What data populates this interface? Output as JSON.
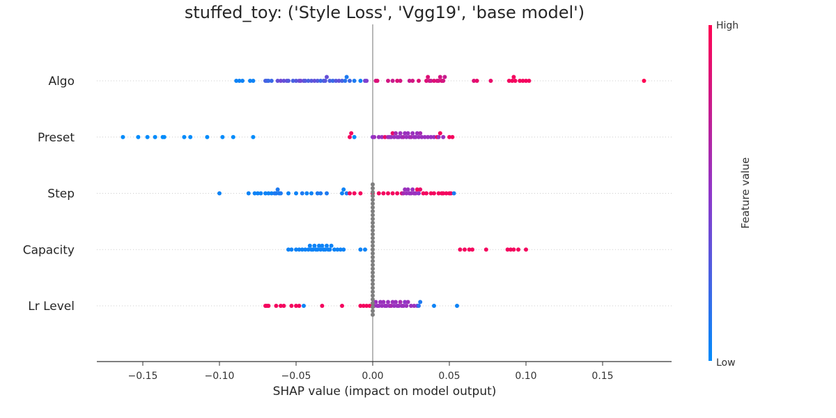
{
  "chart_data": {
    "type": "scatter",
    "subtype": "shap-beeswarm",
    "title": "stuffed_toy: ('Style Loss', 'Vgg19', 'base model')",
    "xlabel": "SHAP value (impact on model output)",
    "xlim": [
      -0.18,
      0.195
    ],
    "x_ticks": [
      -0.15,
      -0.1,
      -0.05,
      0.0,
      0.05,
      0.1,
      0.15
    ],
    "x_tick_labels": [
      "−0.15",
      "−0.10",
      "−0.05",
      "0.00",
      "0.05",
      "0.10",
      "0.15"
    ],
    "features": [
      "Algo",
      "Preset",
      "Step",
      "Capacity",
      "Lr Level"
    ],
    "colorbar": {
      "label": "Feature value",
      "high": "High",
      "low": "Low",
      "low_color": "#008bfb",
      "mid_color": "#8f36c9",
      "high_color": "#ff0052"
    },
    "missing_color": "#7f7f7f",
    "series": [
      {
        "feature": "Algo",
        "points": [
          [
            -0.089,
            0.05
          ],
          [
            -0.087,
            0.05
          ],
          [
            -0.085,
            0.05
          ],
          [
            -0.08,
            0.05
          ],
          [
            -0.078,
            0.05
          ],
          [
            -0.07,
            0.25
          ],
          [
            -0.069,
            0.25
          ],
          [
            -0.068,
            0.2
          ],
          [
            -0.066,
            0.2
          ],
          [
            -0.062,
            0.35
          ],
          [
            -0.06,
            0.4
          ],
          [
            -0.058,
            0.35
          ],
          [
            -0.056,
            0.35
          ],
          [
            -0.055,
            0.3
          ],
          [
            -0.052,
            0.25
          ],
          [
            -0.05,
            0.3
          ],
          [
            -0.048,
            0.35
          ],
          [
            -0.047,
            0.4
          ],
          [
            -0.045,
            0.35
          ],
          [
            -0.044,
            0.3
          ],
          [
            -0.042,
            0.25
          ],
          [
            -0.04,
            0.3
          ],
          [
            -0.038,
            0.35
          ],
          [
            -0.036,
            0.3
          ],
          [
            -0.034,
            0.2
          ],
          [
            -0.032,
            0.25
          ],
          [
            -0.031,
            0.3
          ],
          [
            -0.03,
            0.35
          ],
          [
            -0.028,
            0.25
          ],
          [
            -0.026,
            0.2
          ],
          [
            -0.024,
            0.3
          ],
          [
            -0.022,
            0.35
          ],
          [
            -0.02,
            0.25
          ],
          [
            -0.018,
            0.15
          ],
          [
            -0.017,
            0.1
          ],
          [
            -0.015,
            0.2
          ],
          [
            -0.012,
            0.1
          ],
          [
            -0.008,
            0.05
          ],
          [
            -0.005,
            0.4
          ],
          [
            -0.004,
            0.45
          ],
          [
            0.002,
            0.8
          ],
          [
            0.003,
            0.85
          ],
          [
            0.01,
            0.8
          ],
          [
            0.013,
            0.75
          ],
          [
            0.016,
            0.85
          ],
          [
            0.018,
            0.8
          ],
          [
            0.024,
            0.75
          ],
          [
            0.026,
            0.8
          ],
          [
            0.03,
            0.85
          ],
          [
            0.035,
            0.85
          ],
          [
            0.036,
            0.85
          ],
          [
            0.037,
            0.8
          ],
          [
            0.038,
            0.75
          ],
          [
            0.04,
            0.85
          ],
          [
            0.042,
            0.85
          ],
          [
            0.043,
            0.8
          ],
          [
            0.044,
            0.8
          ],
          [
            0.045,
            0.85
          ],
          [
            0.046,
            0.8
          ],
          [
            0.047,
            0.75
          ],
          [
            0.066,
            0.85
          ],
          [
            0.068,
            0.9
          ],
          [
            0.077,
            0.9
          ],
          [
            0.089,
            0.95
          ],
          [
            0.091,
            0.95
          ],
          [
            0.092,
            0.95
          ],
          [
            0.093,
            0.95
          ],
          [
            0.096,
            0.95
          ],
          [
            0.098,
            0.95
          ],
          [
            0.1,
            0.95
          ],
          [
            0.102,
            0.95
          ],
          [
            0.177,
            1.0
          ]
        ]
      },
      {
        "feature": "Preset",
        "points": [
          [
            -0.163,
            0.0
          ],
          [
            -0.153,
            0.0
          ],
          [
            -0.147,
            0.0
          ],
          [
            -0.142,
            0.0
          ],
          [
            -0.137,
            0.0
          ],
          [
            -0.136,
            0.0
          ],
          [
            -0.123,
            0.0
          ],
          [
            -0.119,
            0.0
          ],
          [
            -0.108,
            0.0
          ],
          [
            -0.098,
            0.0
          ],
          [
            -0.091,
            0.0
          ],
          [
            -0.078,
            0.0
          ],
          [
            -0.015,
            0.95
          ],
          [
            -0.014,
            0.95
          ],
          [
            -0.012,
            0.0
          ],
          [
            0.0,
            0.5
          ],
          [
            0.001,
            0.55
          ],
          [
            0.004,
            0.55
          ],
          [
            0.006,
            0.55
          ],
          [
            0.008,
            0.9
          ],
          [
            0.01,
            0.6
          ],
          [
            0.011,
            0.55
          ],
          [
            0.012,
            0.55
          ],
          [
            0.013,
            0.9
          ],
          [
            0.014,
            0.55
          ],
          [
            0.015,
            0.6
          ],
          [
            0.016,
            0.55
          ],
          [
            0.017,
            0.55
          ],
          [
            0.018,
            0.55
          ],
          [
            0.019,
            0.55
          ],
          [
            0.02,
            0.6
          ],
          [
            0.021,
            0.55
          ],
          [
            0.022,
            0.55
          ],
          [
            0.023,
            0.55
          ],
          [
            0.024,
            0.55
          ],
          [
            0.025,
            0.6
          ],
          [
            0.026,
            0.55
          ],
          [
            0.027,
            0.55
          ],
          [
            0.028,
            0.55
          ],
          [
            0.029,
            0.55
          ],
          [
            0.03,
            0.55
          ],
          [
            0.031,
            0.6
          ],
          [
            0.032,
            0.55
          ],
          [
            0.034,
            0.55
          ],
          [
            0.036,
            0.55
          ],
          [
            0.038,
            0.55
          ],
          [
            0.04,
            0.55
          ],
          [
            0.042,
            0.95
          ],
          [
            0.043,
            0.55
          ],
          [
            0.044,
            0.95
          ],
          [
            0.046,
            0.55
          ],
          [
            0.05,
            0.95
          ],
          [
            0.052,
            0.95
          ]
        ]
      },
      {
        "feature": "Step",
        "points": [
          [
            -0.1,
            0.05
          ],
          [
            -0.081,
            0.05
          ],
          [
            -0.077,
            0.05
          ],
          [
            -0.075,
            0.05
          ],
          [
            -0.073,
            0.05
          ],
          [
            -0.07,
            0.05
          ],
          [
            -0.068,
            0.05
          ],
          [
            -0.066,
            0.05
          ],
          [
            -0.064,
            0.1
          ],
          [
            -0.063,
            0.1
          ],
          [
            -0.062,
            0.1
          ],
          [
            -0.061,
            0.1
          ],
          [
            -0.06,
            0.1
          ],
          [
            -0.055,
            0.05
          ],
          [
            -0.05,
            0.05
          ],
          [
            -0.046,
            0.1
          ],
          [
            -0.043,
            0.05
          ],
          [
            -0.04,
            0.05
          ],
          [
            -0.036,
            0.1
          ],
          [
            -0.034,
            0.1
          ],
          [
            -0.03,
            0.1
          ],
          [
            -0.02,
            0.05
          ],
          [
            -0.019,
            0.05
          ],
          [
            -0.017,
            0.1
          ],
          [
            -0.015,
            0.95
          ],
          [
            -0.012,
            0.95
          ],
          [
            -0.008,
            0.95
          ],
          [
            0.0,
            0.95
          ],
          [
            0.004,
            0.95
          ],
          [
            0.007,
            0.95
          ],
          [
            0.01,
            0.95
          ],
          [
            0.013,
            0.95
          ],
          [
            0.016,
            0.95
          ],
          [
            0.019,
            0.85
          ],
          [
            0.02,
            0.6
          ],
          [
            0.021,
            0.55
          ],
          [
            0.022,
            0.55
          ],
          [
            0.023,
            0.55
          ],
          [
            0.024,
            0.55
          ],
          [
            0.025,
            0.55
          ],
          [
            0.026,
            0.55
          ],
          [
            0.027,
            0.55
          ],
          [
            0.028,
            0.55
          ],
          [
            0.029,
            0.95
          ],
          [
            0.03,
            0.5
          ],
          [
            0.031,
            0.9
          ],
          [
            0.033,
            0.95
          ],
          [
            0.035,
            0.95
          ],
          [
            0.038,
            0.95
          ],
          [
            0.04,
            0.95
          ],
          [
            0.043,
            0.95
          ],
          [
            0.045,
            0.95
          ],
          [
            0.046,
            0.95
          ],
          [
            0.048,
            0.95
          ],
          [
            0.05,
            0.95
          ],
          [
            0.051,
            0.95
          ],
          [
            0.053,
            0.1
          ]
        ]
      },
      {
        "feature": "Capacity",
        "points": [
          [
            -0.055,
            0.05
          ],
          [
            -0.053,
            0.05
          ],
          [
            -0.05,
            0.05
          ],
          [
            -0.048,
            0.05
          ],
          [
            -0.046,
            0.05
          ],
          [
            -0.044,
            0.05
          ],
          [
            -0.042,
            0.05
          ],
          [
            -0.041,
            0.05
          ],
          [
            -0.04,
            0.05
          ],
          [
            -0.039,
            0.05
          ],
          [
            -0.038,
            0.05
          ],
          [
            -0.037,
            0.05
          ],
          [
            -0.036,
            0.05
          ],
          [
            -0.035,
            0.05
          ],
          [
            -0.034,
            0.05
          ],
          [
            -0.033,
            0.05
          ],
          [
            -0.032,
            0.05
          ],
          [
            -0.031,
            0.05
          ],
          [
            -0.03,
            0.05
          ],
          [
            -0.029,
            0.05
          ],
          [
            -0.028,
            0.05
          ],
          [
            -0.027,
            0.05
          ],
          [
            -0.025,
            0.05
          ],
          [
            -0.023,
            0.05
          ],
          [
            -0.021,
            0.05
          ],
          [
            -0.019,
            0.05
          ],
          [
            -0.008,
            0.05
          ],
          [
            -0.005,
            0.05
          ],
          [
            0.057,
            0.95
          ],
          [
            0.06,
            0.95
          ],
          [
            0.063,
            0.95
          ],
          [
            0.065,
            0.95
          ],
          [
            0.074,
            0.95
          ],
          [
            0.088,
            0.95
          ],
          [
            0.09,
            0.95
          ],
          [
            0.092,
            0.95
          ],
          [
            0.095,
            0.95
          ],
          [
            0.1,
            0.95
          ]
        ]
      },
      {
        "feature": "Lr Level",
        "points": [
          [
            -0.07,
            0.95
          ],
          [
            -0.069,
            0.95
          ],
          [
            -0.068,
            0.95
          ],
          [
            -0.063,
            0.95
          ],
          [
            -0.06,
            0.95
          ],
          [
            -0.058,
            0.95
          ],
          [
            -0.053,
            0.95
          ],
          [
            -0.05,
            0.95
          ],
          [
            -0.048,
            0.95
          ],
          [
            -0.045,
            0.05
          ],
          [
            -0.033,
            0.95
          ],
          [
            -0.02,
            0.95
          ],
          [
            -0.008,
            0.95
          ],
          [
            -0.006,
            0.95
          ],
          [
            -0.004,
            0.95
          ],
          [
            -0.002,
            0.95
          ],
          [
            0.0,
            0.55
          ],
          [
            0.001,
            0.55
          ],
          [
            0.002,
            0.55
          ],
          [
            0.003,
            0.55
          ],
          [
            0.004,
            0.55
          ],
          [
            0.005,
            0.55
          ],
          [
            0.006,
            0.55
          ],
          [
            0.007,
            0.55
          ],
          [
            0.008,
            0.55
          ],
          [
            0.009,
            0.55
          ],
          [
            0.01,
            0.55
          ],
          [
            0.011,
            0.55
          ],
          [
            0.012,
            0.6
          ],
          [
            0.013,
            0.55
          ],
          [
            0.014,
            0.55
          ],
          [
            0.015,
            0.55
          ],
          [
            0.016,
            0.55
          ],
          [
            0.017,
            0.55
          ],
          [
            0.018,
            0.6
          ],
          [
            0.019,
            0.55
          ],
          [
            0.02,
            0.55
          ],
          [
            0.021,
            0.5
          ],
          [
            0.022,
            0.55
          ],
          [
            0.023,
            0.55
          ],
          [
            0.025,
            0.55
          ],
          [
            0.027,
            0.55
          ],
          [
            0.029,
            0.5
          ],
          [
            0.03,
            0.15
          ],
          [
            0.031,
            0.1
          ],
          [
            0.04,
            0.05
          ],
          [
            0.055,
            0.05
          ]
        ]
      }
    ],
    "missing_series": {
      "feature": "Capacity",
      "x": 0.0,
      "count": 35
    }
  }
}
